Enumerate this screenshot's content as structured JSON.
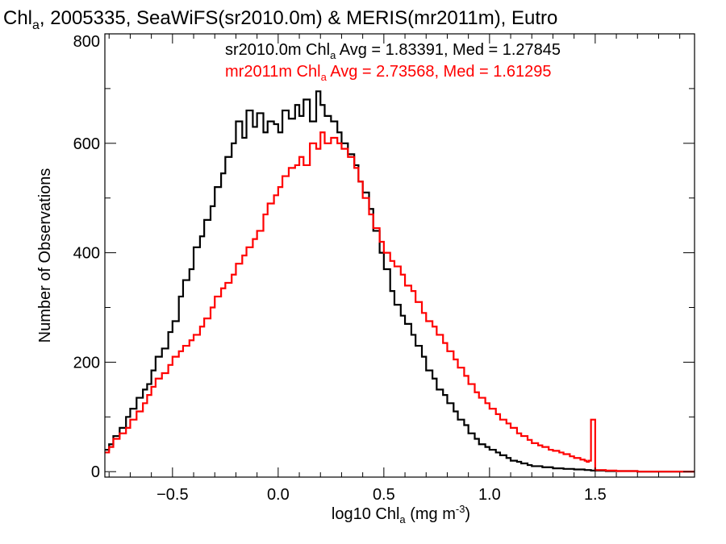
{
  "chart_data": {
    "type": "histogram",
    "title": {
      "pre": "Chl",
      "sub": "a",
      "post": ", 2005335, SeaWiFS(sr2010.0m) & MERIS(mr2011m), Eutro"
    },
    "xlabel": {
      "pre": "log10 Chl",
      "sub": "a",
      "mid": " (mg m",
      "sup": "-3",
      "post": ")"
    },
    "ylabel": "Number of Observations",
    "xlim": [
      -0.82,
      1.97
    ],
    "ylim": [
      -10,
      800
    ],
    "xticks": [
      {
        "value": -0.5,
        "label": "−0.5"
      },
      {
        "value": 0.0,
        "label": "0.0"
      },
      {
        "value": 0.5,
        "label": "0.5"
      },
      {
        "value": 1.0,
        "label": "1.0"
      },
      {
        "value": 1.5,
        "label": "1.5"
      }
    ],
    "yticks": [
      {
        "value": 0,
        "label": "0"
      },
      {
        "value": 200,
        "label": "200"
      },
      {
        "value": 400,
        "label": "400"
      },
      {
        "value": 600,
        "label": "600"
      },
      {
        "value": 800,
        "label": "800"
      }
    ],
    "bin_width": 0.01,
    "series": [
      {
        "name": "sr2010.0m",
        "color": "#000000",
        "label": {
          "pre": "sr2010.0m Chl",
          "sub": "a",
          "post": " Avg = 1.83391, Med = 1.27845"
        },
        "x": [
          -0.82,
          -0.8,
          -0.78,
          -0.75,
          -0.72,
          -0.7,
          -0.67,
          -0.64,
          -0.62,
          -0.6,
          -0.58,
          -0.55,
          -0.52,
          -0.5,
          -0.47,
          -0.45,
          -0.42,
          -0.4,
          -0.37,
          -0.35,
          -0.32,
          -0.3,
          -0.27,
          -0.25,
          -0.22,
          -0.2,
          -0.17,
          -0.15,
          -0.12,
          -0.1,
          -0.07,
          -0.05,
          -0.02,
          0.0,
          0.02,
          0.05,
          0.08,
          0.1,
          0.12,
          0.15,
          0.18,
          0.2,
          0.22,
          0.25,
          0.28,
          0.3,
          0.33,
          0.36,
          0.38,
          0.4,
          0.43,
          0.45,
          0.48,
          0.5,
          0.53,
          0.55,
          0.58,
          0.6,
          0.63,
          0.65,
          0.68,
          0.7,
          0.73,
          0.75,
          0.78,
          0.8,
          0.83,
          0.85,
          0.88,
          0.9,
          0.93,
          0.95,
          0.98,
          1.0,
          1.03,
          1.05,
          1.08,
          1.1,
          1.13,
          1.15,
          1.18,
          1.2,
          1.25,
          1.3,
          1.35,
          1.4,
          1.45,
          1.48,
          1.5,
          1.55,
          1.6,
          1.7,
          1.8,
          1.97
        ],
        "y": [
          40,
          50,
          65,
          80,
          100,
          115,
          135,
          150,
          160,
          185,
          210,
          225,
          255,
          275,
          320,
          350,
          370,
          410,
          430,
          460,
          485,
          520,
          545,
          575,
          600,
          640,
          610,
          660,
          630,
          655,
          620,
          640,
          635,
          620,
          660,
          645,
          670,
          650,
          680,
          640,
          695,
          670,
          650,
          640,
          620,
          600,
          580,
          560,
          530,
          510,
          480,
          440,
          400,
          370,
          330,
          305,
          285,
          270,
          250,
          230,
          210,
          185,
          170,
          150,
          140,
          125,
          110,
          95,
          85,
          70,
          60,
          50,
          45,
          40,
          35,
          30,
          25,
          20,
          18,
          15,
          12,
          10,
          8,
          6,
          5,
          4,
          3,
          2,
          2,
          1,
          1,
          0,
          0,
          0
        ]
      },
      {
        "name": "mr2011m",
        "color": "#ff0000",
        "label": {
          "pre": "mr2011m Chl",
          "sub": "a",
          "post": " Avg = 2.73568, Med = 1.61295"
        },
        "x": [
          -0.82,
          -0.8,
          -0.78,
          -0.75,
          -0.72,
          -0.7,
          -0.67,
          -0.64,
          -0.62,
          -0.6,
          -0.58,
          -0.55,
          -0.52,
          -0.5,
          -0.47,
          -0.45,
          -0.42,
          -0.4,
          -0.37,
          -0.35,
          -0.32,
          -0.3,
          -0.27,
          -0.25,
          -0.22,
          -0.2,
          -0.17,
          -0.15,
          -0.12,
          -0.1,
          -0.07,
          -0.05,
          -0.02,
          0.0,
          0.02,
          0.05,
          0.08,
          0.1,
          0.12,
          0.15,
          0.18,
          0.2,
          0.22,
          0.25,
          0.28,
          0.3,
          0.33,
          0.36,
          0.38,
          0.4,
          0.43,
          0.45,
          0.48,
          0.5,
          0.53,
          0.55,
          0.58,
          0.6,
          0.63,
          0.65,
          0.68,
          0.7,
          0.73,
          0.75,
          0.78,
          0.8,
          0.83,
          0.85,
          0.88,
          0.9,
          0.93,
          0.95,
          0.98,
          1.0,
          1.03,
          1.05,
          1.08,
          1.1,
          1.13,
          1.15,
          1.18,
          1.2,
          1.23,
          1.25,
          1.28,
          1.3,
          1.33,
          1.35,
          1.38,
          1.4,
          1.43,
          1.45,
          1.46,
          1.47,
          1.48,
          1.5,
          1.55,
          1.6,
          1.7,
          1.97
        ],
        "y": [
          35,
          45,
          60,
          70,
          80,
          95,
          110,
          125,
          140,
          155,
          170,
          180,
          195,
          210,
          220,
          230,
          240,
          250,
          265,
          280,
          300,
          320,
          335,
          345,
          360,
          380,
          395,
          410,
          425,
          440,
          470,
          490,
          505,
          520,
          540,
          555,
          560,
          575,
          560,
          600,
          590,
          620,
          600,
          610,
          600,
          590,
          575,
          555,
          530,
          500,
          470,
          445,
          420,
          400,
          385,
          375,
          360,
          340,
          330,
          310,
          290,
          275,
          265,
          250,
          235,
          220,
          205,
          190,
          175,
          160,
          145,
          135,
          125,
          115,
          105,
          95,
          88,
          80,
          70,
          65,
          58,
          52,
          48,
          45,
          40,
          38,
          35,
          32,
          28,
          25,
          22,
          20,
          18,
          20,
          95,
          3,
          2,
          1,
          0,
          0
        ]
      }
    ]
  }
}
